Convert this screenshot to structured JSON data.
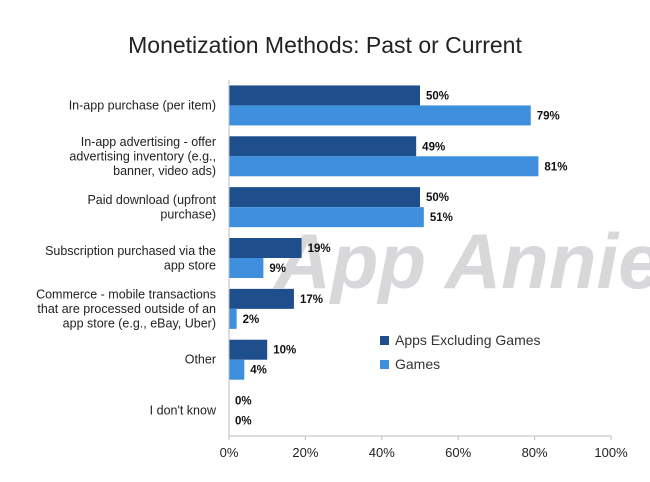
{
  "chart_data": {
    "type": "bar",
    "orientation": "horizontal",
    "title": "Monetization Methods: Past or Current",
    "categories": [
      [
        "In-app purchase (per item)"
      ],
      [
        "In-app advertising - offer",
        "advertising inventory (e.g.,",
        "banner, video ads)"
      ],
      [
        "Paid download (upfront",
        "purchase)"
      ],
      [
        "Subscription purchased via the",
        "app store"
      ],
      [
        "Commerce - mobile transactions",
        "that are processed outside of an",
        "app store (e.g., eBay, Uber)"
      ],
      [
        "Other"
      ],
      [
        "I don't know"
      ]
    ],
    "series": [
      {
        "name": "Apps Excluding Games",
        "color": "#1f4e8c",
        "values": [
          50,
          49,
          50,
          19,
          17,
          10,
          0
        ]
      },
      {
        "name": "Games",
        "color": "#3e8fdd",
        "values": [
          79,
          81,
          51,
          9,
          2,
          4,
          0
        ]
      }
    ],
    "xlim": [
      0,
      100
    ],
    "xticks": [
      0,
      20,
      40,
      60,
      80,
      100
    ],
    "value_suffix": "%",
    "legend_position": "lower-right",
    "grid": false,
    "watermark": "App Annie"
  }
}
